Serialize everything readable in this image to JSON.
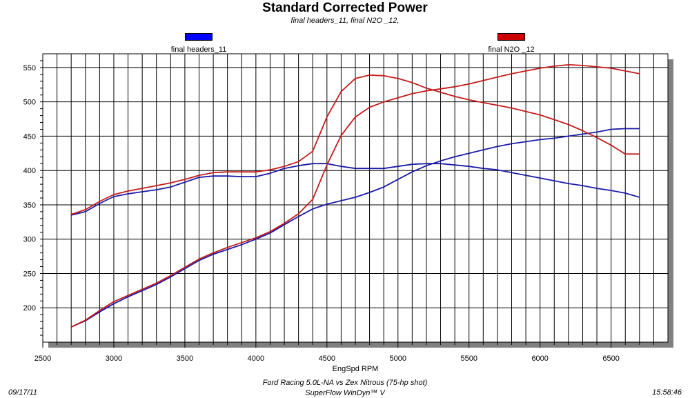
{
  "chart_data": {
    "type": "line",
    "title": "Standard Corrected Power",
    "subtitle": "final headers_11, final N2O _12,",
    "xlabel": "EngSpd RPM",
    "ylabel": "",
    "xlim": [
      2500,
      6900
    ],
    "ylim": [
      150,
      570
    ],
    "x_ticks": [
      2500,
      3000,
      3500,
      4000,
      4500,
      5000,
      5500,
      6000,
      6500
    ],
    "y_ticks": [
      200,
      250,
      300,
      350,
      400,
      450,
      500,
      550
    ],
    "grid": true,
    "legend_position": "top",
    "series": [
      {
        "name": "final headers_11",
        "color": "#1a1aa8",
        "legend_color": "#0000ff",
        "lines": [
          {
            "x": [
              2700,
              2800,
              2900,
              3000,
              3100,
              3200,
              3300,
              3400,
              3500,
              3600,
              3700,
              3800,
              3900,
              4000,
              4100,
              4200,
              4300,
              4400,
              4500,
              4600,
              4700,
              4800,
              4900,
              5000,
              5100,
              5200,
              5300,
              5400,
              5500,
              5600,
              5700,
              5800,
              5900,
              6000,
              6100,
              6200,
              6300,
              6400,
              6500,
              6600,
              6700
            ],
            "y": [
              335,
              340,
              352,
              362,
              366,
              369,
              372,
              376,
              383,
              390,
              392,
              392,
              391,
              391,
              396,
              403,
              407,
              410,
              410,
              406,
              403,
              403,
              403,
              406,
              409,
              410,
              410,
              408,
              406,
              403,
              401,
              397,
              393,
              389,
              385,
              381,
              378,
              374,
              371,
              367,
              361
            ]
          },
          {
            "x": [
              2700,
              2800,
              2900,
              3000,
              3100,
              3200,
              3300,
              3400,
              3500,
              3600,
              3700,
              3800,
              3900,
              4000,
              4100,
              4200,
              4300,
              4400,
              4500,
              4600,
              4700,
              4800,
              4900,
              5000,
              5100,
              5200,
              5300,
              5400,
              5500,
              5600,
              5700,
              5800,
              5900,
              6000,
              6100,
              6200,
              6300,
              6400,
              6500,
              6600,
              6700
            ],
            "y": [
              172,
              181,
              194,
              206,
              216,
              225,
              234,
              245,
              257,
              269,
              278,
              285,
              292,
              300,
              309,
              321,
              333,
              344,
              351,
              356,
              361,
              368,
              376,
              387,
              398,
              407,
              414,
              420,
              425,
              430,
              435,
              439,
              442,
              445,
              447,
              450,
              453,
              456,
              460,
              461,
              461
            ]
          }
        ]
      },
      {
        "name": "final N2O _12",
        "color": "#c41a1a",
        "legend_color": "#cc0000",
        "lines": [
          {
            "x": [
              2700,
              2800,
              2900,
              3000,
              3100,
              3200,
              3300,
              3400,
              3500,
              3600,
              3700,
              3800,
              3900,
              4000,
              4100,
              4200,
              4300,
              4400,
              4500,
              4600,
              4700,
              4800,
              4900,
              5000,
              5100,
              5200,
              5300,
              5400,
              5500,
              5600,
              5700,
              5800,
              5900,
              6000,
              6100,
              6200,
              6300,
              6400,
              6500,
              6600,
              6700
            ],
            "y": [
              336,
              343,
              355,
              365,
              370,
              374,
              378,
              382,
              387,
              393,
              397,
              398,
              398,
              398,
              401,
              406,
              413,
              428,
              478,
              515,
              534,
              539,
              538,
              534,
              528,
              520,
              514,
              508,
              503,
              499,
              495,
              491,
              486,
              481,
              474,
              467,
              458,
              448,
              437,
              424,
              424
            ]
          },
          {
            "x": [
              2700,
              2800,
              2900,
              3000,
              3100,
              3200,
              3300,
              3400,
              3500,
              3600,
              3700,
              3800,
              3900,
              4000,
              4100,
              4200,
              4300,
              4400,
              4500,
              4600,
              4700,
              4800,
              4900,
              5000,
              5100,
              5200,
              5300,
              5400,
              5500,
              5600,
              5700,
              5800,
              5900,
              6000,
              6100,
              6200,
              6300,
              6400,
              6500,
              6600,
              6700
            ],
            "y": [
              172,
              182,
              196,
              209,
              218,
              227,
              236,
              247,
              259,
              271,
              280,
              288,
              295,
              302,
              311,
              323,
              337,
              358,
              408,
              451,
              478,
              492,
              500,
              506,
              512,
              516,
              519,
              522,
              526,
              531,
              536,
              541,
              545,
              549,
              552,
              554,
              553,
              551,
              549,
              545,
              541
            ]
          }
        ]
      }
    ]
  },
  "footer": {
    "date": "09/17/11",
    "time": "15:58:46",
    "caption": "Ford Racing 5.0L-NA vs Zex Nitrous (75-hp shot)",
    "software": "SuperFlow WinDyn™ V"
  }
}
